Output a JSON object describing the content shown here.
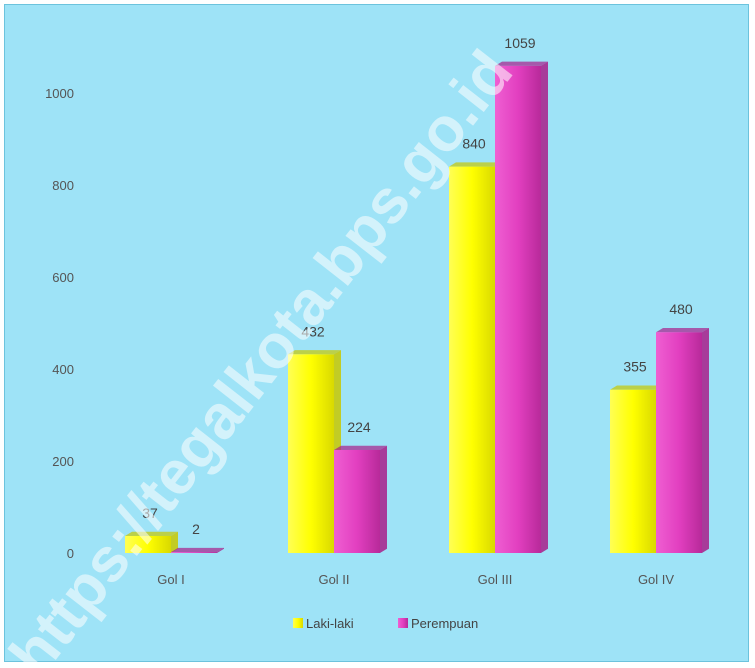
{
  "chart_data": {
    "type": "bar",
    "categories": [
      "Gol I",
      "Gol II",
      "Gol III",
      "Gol IV"
    ],
    "series": [
      {
        "name": "Laki-laki",
        "values": [
          37,
          432,
          840,
          355
        ],
        "labels": [
          "37",
          "432",
          "840",
          "355"
        ]
      },
      {
        "name": "Perempuan",
        "values": [
          2,
          224,
          1059,
          480
        ],
        "labels": [
          "2",
          "224",
          "1059",
          "480"
        ]
      }
    ],
    "yticks": [
      "0",
      "200",
      "400",
      "600",
      "800",
      "1000"
    ],
    "ylim": [
      0,
      1100
    ],
    "legend": "bottom",
    "grid": false,
    "title": "",
    "xlabel": "",
    "ylabel": ""
  },
  "watermark": "https://tegalkota.bps.go.id",
  "colors": {
    "background": "#9ee3f7",
    "laki": "#ffff00",
    "laki_dark": "#c8c800",
    "perempuan": "#e23fc0",
    "perempuan_dark": "#a81e8a"
  }
}
